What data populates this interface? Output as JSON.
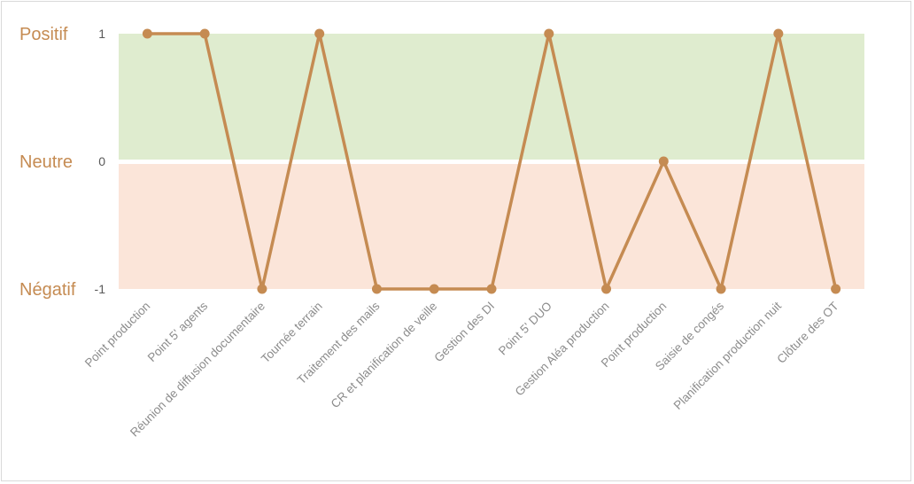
{
  "chart_data": {
    "type": "line",
    "categories": [
      "Point production",
      "Point 5' agents",
      "Réunion de diffusion documentaire",
      "Tournée terrain",
      "Traitement des mails",
      "CR et planification de veille",
      "Gestion des DI",
      "Point 5' DUO",
      "Gestion Aléa production",
      "Point production",
      "Saisie de congés",
      "Planification production nuit",
      "Clôture des OT"
    ],
    "values": [
      1,
      1,
      -1,
      1,
      -1,
      -1,
      -1,
      1,
      -1,
      0,
      -1,
      1,
      -1
    ],
    "ylim": [
      -1,
      1
    ],
    "yticks": [
      "1",
      "0",
      "-1"
    ],
    "zone_labels": {
      "positive": "Positif",
      "neutral": "Neutre",
      "negative": "Négatif"
    },
    "colors": {
      "line": "#c58b52",
      "zone_label": "#c58b52",
      "positive_band": "#dfeccf",
      "negative_band": "#fbe5d9"
    },
    "legend": "none",
    "grid": false
  }
}
